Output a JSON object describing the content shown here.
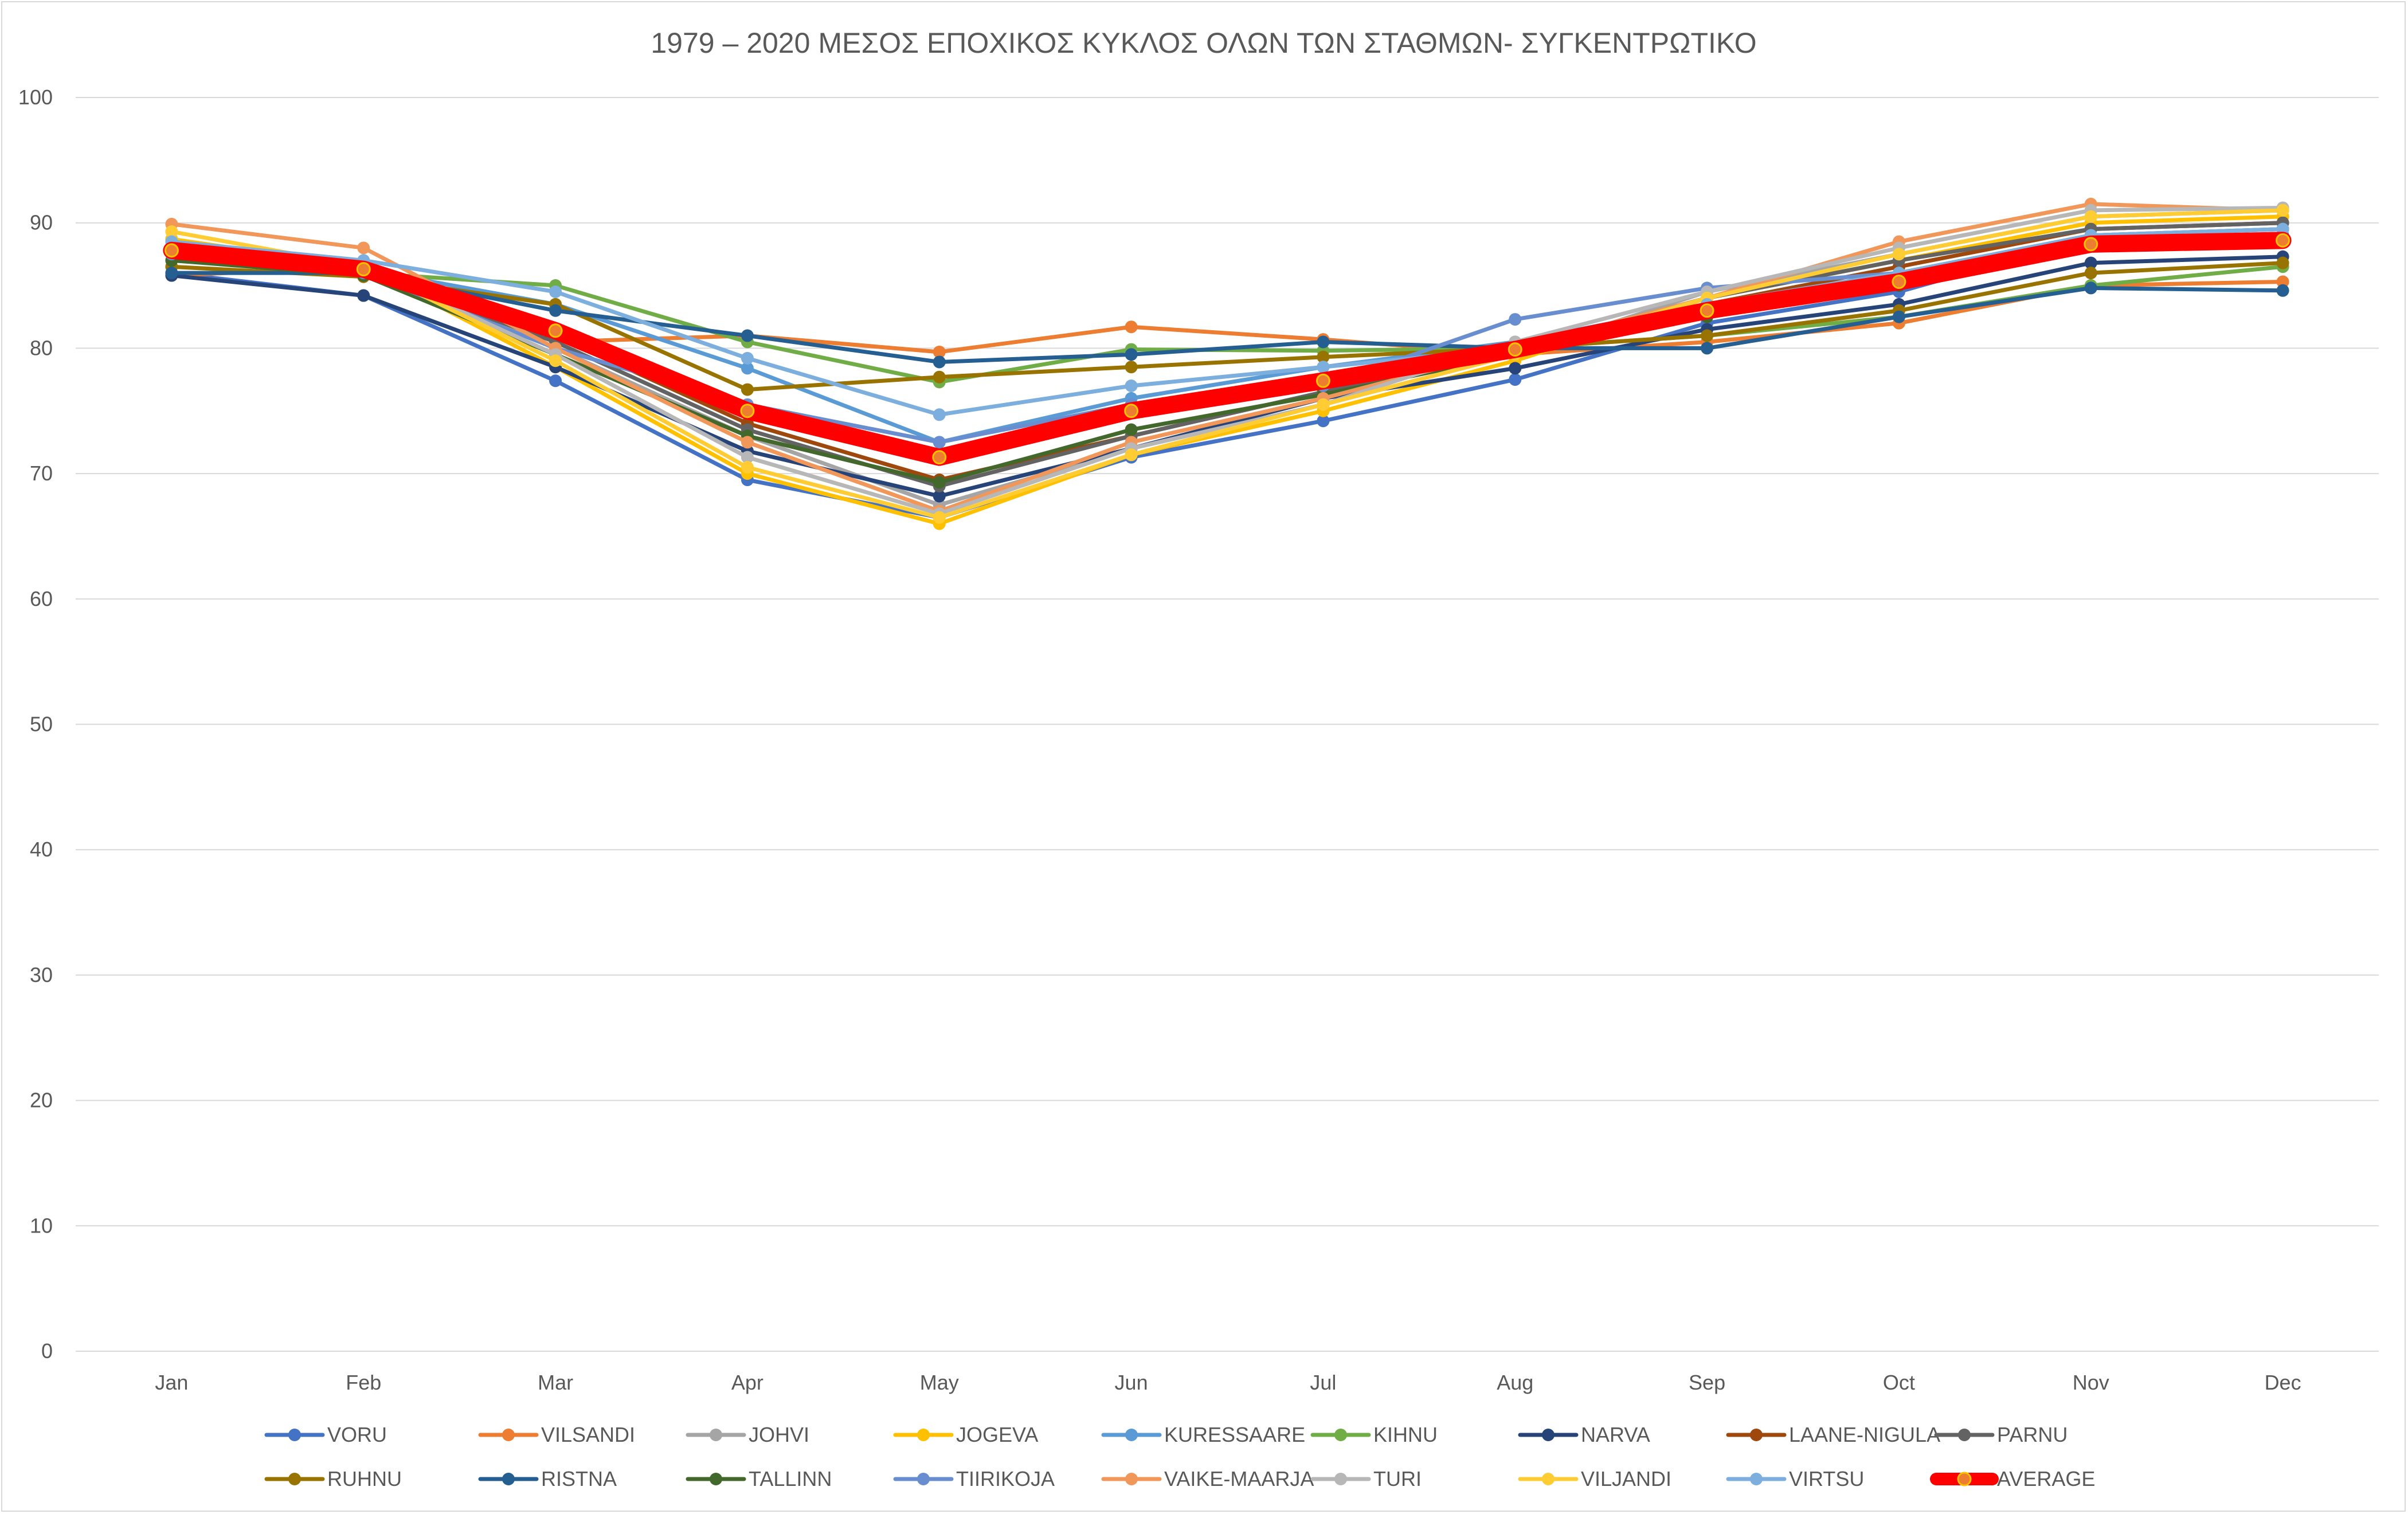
{
  "chart_data": {
    "type": "line",
    "title": "1979 – 2020 ΜΕΣΟΣ ΕΠΟΧΙΚΟΣ ΚΥΚΛΟΣ ΟΛΩΝ ΤΩΝ ΣΤΑΘΜΩΝ- ΣΥΓΚΕΝΤΡΩΤΙΚΟ",
    "xlabel": "",
    "ylabel": "",
    "categories": [
      "Jan",
      "Feb",
      "Mar",
      "Apr",
      "May",
      "Jun",
      "Jul",
      "Aug",
      "Sep",
      "Oct",
      "Nov",
      "Dec"
    ],
    "ylim": [
      0,
      100
    ],
    "yticks": [
      "0",
      "10",
      "20",
      "30",
      "40",
      "50",
      "60",
      "70",
      "80",
      "90",
      "100"
    ],
    "grid": "horizontal",
    "legend_position": "bottom",
    "series": [
      {
        "name": "VORU",
        "color": "#4472C4",
        "values": [
          86.0,
          84.2,
          77.4,
          69.5,
          66.5,
          71.3,
          74.2,
          77.5,
          82.0,
          84.5,
          88.8,
          89.0
        ]
      },
      {
        "name": "VILSANDI",
        "color": "#ED7D31",
        "values": [
          85.8,
          86.5,
          80.5,
          81.0,
          79.7,
          81.7,
          80.7,
          79.5,
          80.5,
          82.0,
          85.0,
          85.3
        ]
      },
      {
        "name": "JOHVI",
        "color": "#A5A5A5",
        "values": [
          88.2,
          87.0,
          80.0,
          73.0,
          67.5,
          72.0,
          75.5,
          79.5,
          84.5,
          87.5,
          90.5,
          91.0
        ]
      },
      {
        "name": "JOGEVA",
        "color": "#FFC000",
        "values": [
          88.7,
          86.5,
          78.5,
          70.0,
          66.0,
          71.5,
          75.0,
          79.0,
          84.0,
          87.0,
          90.0,
          90.5
        ]
      },
      {
        "name": "KURESSAARE",
        "color": "#5B9BD5",
        "values": [
          88.0,
          86.3,
          83.5,
          78.4,
          72.5,
          76.0,
          78.5,
          80.5,
          83.5,
          86.0,
          89.0,
          89.5
        ]
      },
      {
        "name": "KIHNU",
        "color": "#70AD47",
        "values": [
          87.0,
          86.0,
          85.0,
          80.5,
          77.3,
          79.9,
          79.8,
          80.0,
          81.0,
          82.5,
          85.0,
          86.5
        ]
      },
      {
        "name": "NARVA",
        "color": "#264478",
        "values": [
          85.8,
          84.2,
          78.5,
          71.8,
          68.2,
          72.0,
          76.0,
          78.4,
          81.5,
          83.5,
          86.8,
          87.3
        ]
      },
      {
        "name": "LAANE-NIGULA",
        "color": "#9E480E",
        "values": [
          87.5,
          86.0,
          81.0,
          74.0,
          69.5,
          73.0,
          76.5,
          80.0,
          83.5,
          86.5,
          89.5,
          90.0
        ]
      },
      {
        "name": "PARNU",
        "color": "#636363",
        "values": [
          87.5,
          86.0,
          80.5,
          73.5,
          69.0,
          73.0,
          76.5,
          80.0,
          84.0,
          87.0,
          89.5,
          90.0
        ]
      },
      {
        "name": "RUHNU",
        "color": "#997300",
        "values": [
          86.5,
          85.7,
          83.5,
          76.7,
          77.7,
          78.5,
          79.3,
          80.0,
          81.0,
          83.0,
          86.0,
          86.8
        ]
      },
      {
        "name": "RISTNA",
        "color": "#255E91",
        "values": [
          86.0,
          86.0,
          83.0,
          81.0,
          78.9,
          79.5,
          80.5,
          80.0,
          80.0,
          82.5,
          84.8,
          84.6
        ]
      },
      {
        "name": "TALLINN",
        "color": "#43682B",
        "values": [
          87.0,
          85.8,
          79.5,
          73.0,
          69.3,
          73.5,
          76.3,
          79.5,
          82.5,
          85.0,
          88.5,
          88.8
        ]
      },
      {
        "name": "TIIRIKOJA",
        "color": "#698ED0",
        "values": [
          87.5,
          86.0,
          80.0,
          75.5,
          72.5,
          75.5,
          77.0,
          82.3,
          84.8,
          86.0,
          89.0,
          89.5
        ]
      },
      {
        "name": "VAIKE-MAARJA",
        "color": "#F1975A",
        "values": [
          89.9,
          88.0,
          80.0,
          72.5,
          67.0,
          72.5,
          76.0,
          80.0,
          84.0,
          88.5,
          91.5,
          91.0
        ]
      },
      {
        "name": "TURI",
        "color": "#B7B7B7",
        "values": [
          88.5,
          86.5,
          79.5,
          71.3,
          66.8,
          72.0,
          75.5,
          80.5,
          84.5,
          88.0,
          91.0,
          91.2
        ]
      },
      {
        "name": "VILJANDI",
        "color": "#FFCD33",
        "values": [
          89.3,
          86.5,
          79.0,
          70.5,
          66.5,
          71.5,
          75.5,
          79.5,
          84.0,
          87.5,
          90.5,
          91.0
        ]
      },
      {
        "name": "VIRTSU",
        "color": "#7CAFDD",
        "values": [
          88.5,
          87.0,
          84.5,
          79.2,
          74.7,
          77.0,
          78.5,
          80.0,
          83.5,
          86.0,
          89.0,
          89.5
        ]
      },
      {
        "name": "AVERAGE",
        "color": "#FF0000",
        "values": [
          87.8,
          86.3,
          81.4,
          75.0,
          71.3,
          75.0,
          77.4,
          79.9,
          83.0,
          85.3,
          88.3,
          88.6
        ]
      }
    ]
  }
}
